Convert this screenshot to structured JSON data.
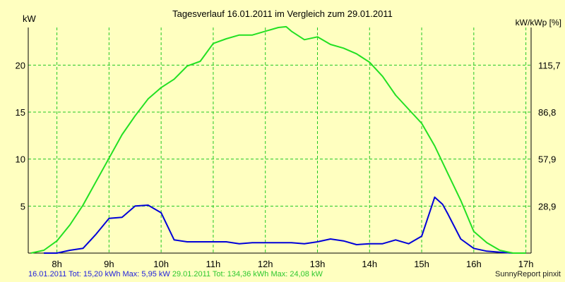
{
  "colors": {
    "background": "#ffffc0",
    "grid": "#22c822",
    "axis": "#000000",
    "series_16": "#0000d8",
    "series_29": "#22e022"
  },
  "footer": {
    "series1_text": "16.01.2011 Tot: 15,20 kWh Max: 5,95 kW",
    "series2_text": "29.01.2011 Tot: 134,36 kWh Max: 24,08 kW",
    "credit": "SunnyReport pinxit"
  },
  "chart_data": {
    "type": "line",
    "title": "Tagesverlauf 16.01.2011 im Vergleich zum 29.01.2011",
    "ylabel": "kW",
    "ylabel_right": "kW/kWp [%]",
    "xlabel": "",
    "x_ticks": [
      "8h",
      "9h",
      "10h",
      "11h",
      "12h",
      "13h",
      "14h",
      "15h",
      "16h",
      "17h"
    ],
    "x_tick_values": [
      8,
      9,
      10,
      11,
      12,
      13,
      14,
      15,
      16,
      17
    ],
    "xlim": [
      7.45,
      17.1
    ],
    "ylim": [
      0,
      24
    ],
    "y_ticks": [
      5,
      10,
      15,
      20
    ],
    "y_ticks_right": [
      "28,9",
      "57,9",
      "86,8",
      "115,7"
    ],
    "grid": true,
    "series": [
      {
        "name": "16.01.2011",
        "x": [
          7.75,
          8.0,
          8.25,
          8.5,
          8.75,
          9.0,
          9.25,
          9.5,
          9.75,
          10.0,
          10.25,
          10.5,
          10.75,
          11.0,
          11.25,
          11.5,
          11.75,
          12.0,
          12.25,
          12.5,
          12.75,
          13.0,
          13.25,
          13.5,
          13.75,
          14.0,
          14.25,
          14.5,
          14.75,
          15.0,
          15.25,
          15.4,
          15.5,
          15.75,
          16.0,
          16.25,
          16.5,
          16.75,
          17.0
        ],
        "y": [
          0,
          0,
          0.3,
          0.5,
          2.0,
          3.7,
          3.8,
          5.0,
          5.1,
          4.3,
          1.4,
          1.2,
          1.2,
          1.2,
          1.2,
          1.0,
          1.1,
          1.1,
          1.1,
          1.1,
          1.0,
          1.2,
          1.5,
          1.3,
          0.9,
          1.0,
          1.0,
          1.4,
          1.0,
          1.8,
          5.95,
          5.2,
          4.2,
          1.5,
          0.5,
          0.2,
          0.1,
          0,
          0
        ]
      },
      {
        "name": "29.01.2011",
        "x": [
          7.5,
          7.75,
          8.0,
          8.25,
          8.5,
          8.75,
          9.0,
          9.25,
          9.5,
          9.75,
          10.0,
          10.25,
          10.5,
          10.75,
          11.0,
          11.25,
          11.5,
          11.75,
          12.0,
          12.25,
          12.4,
          12.5,
          12.75,
          13.0,
          13.25,
          13.5,
          13.75,
          14.0,
          14.25,
          14.5,
          14.75,
          15.0,
          15.25,
          15.5,
          15.75,
          16.0,
          16.25,
          16.5,
          16.75,
          17.0
        ],
        "y": [
          0,
          0.3,
          1.3,
          3.0,
          5.1,
          7.6,
          10.1,
          12.6,
          14.6,
          16.4,
          17.6,
          18.5,
          19.9,
          20.4,
          22.3,
          22.8,
          23.2,
          23.2,
          23.6,
          24.0,
          24.08,
          23.6,
          22.7,
          23.0,
          22.2,
          21.8,
          21.2,
          20.3,
          18.8,
          16.8,
          15.3,
          13.8,
          11.4,
          8.5,
          5.6,
          2.3,
          1.1,
          0.3,
          0,
          0
        ]
      }
    ]
  }
}
